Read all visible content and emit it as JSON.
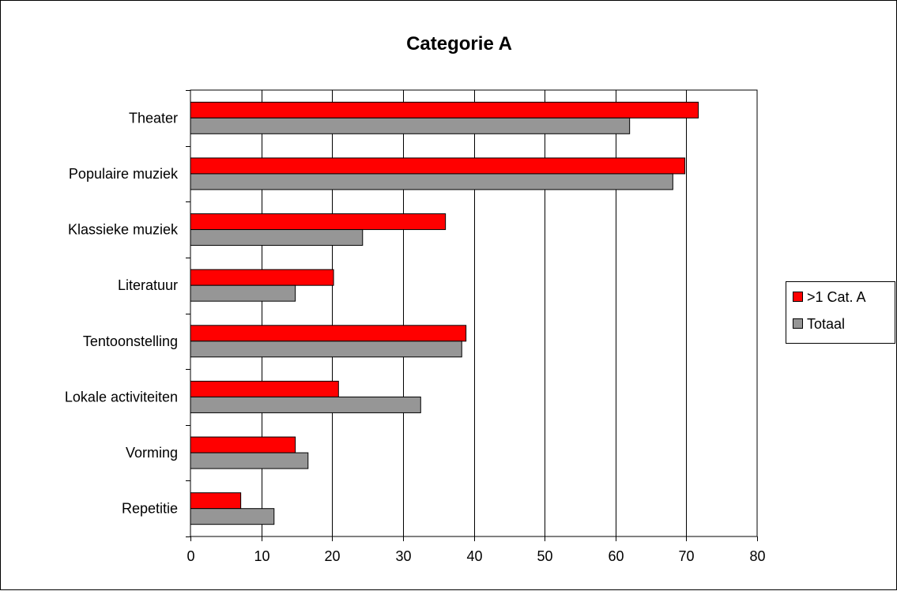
{
  "chart_data": {
    "type": "bar",
    "orientation": "horizontal",
    "title": "Categorie A",
    "xlabel": "",
    "ylabel": "",
    "categories": [
      "Theater",
      "Populaire muziek",
      "Klassieke muziek",
      "Literatuur",
      "Tentoonstelling",
      "Lokale activiteiten",
      "Vorming",
      "Repetitie"
    ],
    "series": [
      {
        "name": ">1 Cat. A",
        "color": "#ff0000",
        "values": [
          71.7,
          69.8,
          36.0,
          20.2,
          38.9,
          20.9,
          14.8,
          7.1
        ]
      },
      {
        "name": "Totaal",
        "color": "#969696",
        "values": [
          62.0,
          68.1,
          24.3,
          14.8,
          38.3,
          32.5,
          16.6,
          11.8
        ]
      }
    ],
    "xlim": [
      0,
      80
    ],
    "xticks": [
      0,
      10,
      20,
      30,
      40,
      50,
      60,
      70,
      80
    ],
    "grid": "vertical-major",
    "legend_position": "right"
  }
}
